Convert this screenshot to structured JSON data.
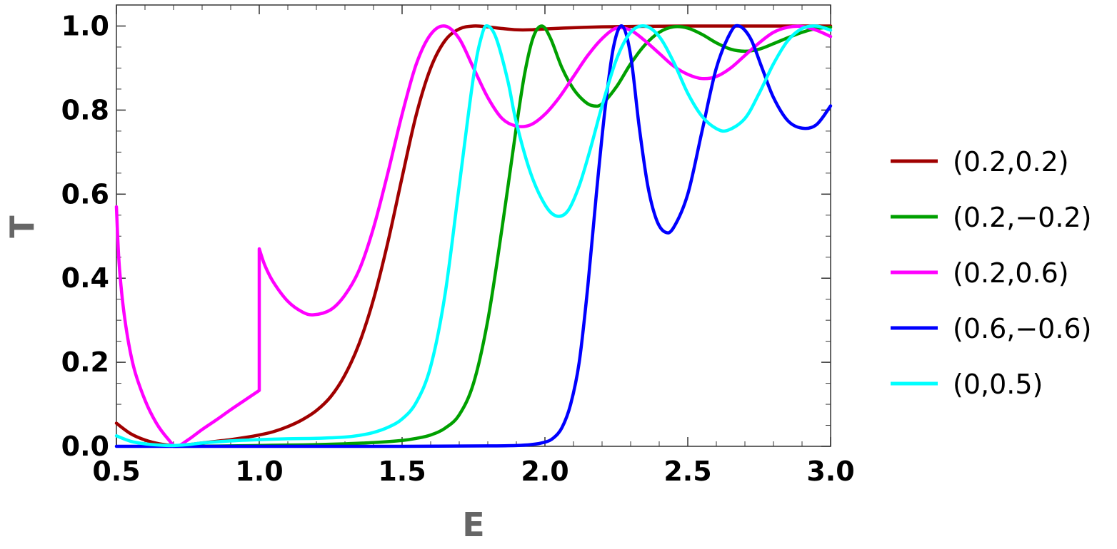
{
  "chart_data": {
    "type": "line",
    "title": "",
    "xlabel": "E",
    "ylabel": "T",
    "xlim": [
      0.5,
      3.0
    ],
    "ylim": [
      0.0,
      1.0
    ],
    "x_ticks": [
      "0.5",
      "1.0",
      "1.5",
      "2.0",
      "2.5",
      "3.0"
    ],
    "y_ticks": [
      "0.0",
      "0.2",
      "0.4",
      "0.6",
      "0.8",
      "1.0"
    ],
    "grid": false,
    "legend_position": "right",
    "series": [
      {
        "name": "(0.2,0.2)",
        "color": "#a00000",
        "points": [
          [
            0.5,
            0.055
          ],
          [
            0.55,
            0.03
          ],
          [
            0.6,
            0.015
          ],
          [
            0.65,
            0.006
          ],
          [
            0.7,
            0.002
          ],
          [
            0.75,
            0.004
          ],
          [
            0.8,
            0.008
          ],
          [
            0.85,
            0.012
          ],
          [
            0.9,
            0.016
          ],
          [
            0.95,
            0.021
          ],
          [
            1.0,
            0.027
          ],
          [
            1.05,
            0.035
          ],
          [
            1.1,
            0.047
          ],
          [
            1.15,
            0.063
          ],
          [
            1.2,
            0.085
          ],
          [
            1.25,
            0.118
          ],
          [
            1.3,
            0.17
          ],
          [
            1.35,
            0.245
          ],
          [
            1.4,
            0.35
          ],
          [
            1.45,
            0.485
          ],
          [
            1.5,
            0.64
          ],
          [
            1.55,
            0.79
          ],
          [
            1.6,
            0.9
          ],
          [
            1.65,
            0.965
          ],
          [
            1.7,
            0.993
          ],
          [
            1.75,
            1.0
          ],
          [
            1.8,
            0.998
          ],
          [
            1.85,
            0.994
          ],
          [
            1.9,
            0.991
          ],
          [
            1.95,
            0.991
          ],
          [
            2.0,
            0.993
          ],
          [
            2.1,
            0.996
          ],
          [
            2.2,
            0.998
          ],
          [
            2.3,
            0.999
          ],
          [
            2.5,
            1.0
          ],
          [
            2.75,
            1.0
          ],
          [
            3.0,
            1.0
          ]
        ]
      },
      {
        "name": "(0.2,−0.2)",
        "color": "#00a000",
        "points": [
          [
            0.7,
            0.0
          ],
          [
            0.8,
            0.0005
          ],
          [
            0.9,
            0.001
          ],
          [
            1.0,
            0.002
          ],
          [
            1.1,
            0.003
          ],
          [
            1.2,
            0.004
          ],
          [
            1.3,
            0.006
          ],
          [
            1.4,
            0.009
          ],
          [
            1.5,
            0.014
          ],
          [
            1.55,
            0.019
          ],
          [
            1.6,
            0.027
          ],
          [
            1.65,
            0.043
          ],
          [
            1.7,
            0.075
          ],
          [
            1.75,
            0.15
          ],
          [
            1.8,
            0.3
          ],
          [
            1.85,
            0.52
          ],
          [
            1.9,
            0.76
          ],
          [
            1.93,
            0.89
          ],
          [
            1.96,
            0.975
          ],
          [
            1.99,
            1.0
          ],
          [
            2.02,
            0.97
          ],
          [
            2.06,
            0.9
          ],
          [
            2.1,
            0.85
          ],
          [
            2.14,
            0.82
          ],
          [
            2.17,
            0.81
          ],
          [
            2.2,
            0.815
          ],
          [
            2.25,
            0.855
          ],
          [
            2.3,
            0.91
          ],
          [
            2.35,
            0.955
          ],
          [
            2.4,
            0.985
          ],
          [
            2.45,
            0.998
          ],
          [
            2.5,
            0.995
          ],
          [
            2.55,
            0.98
          ],
          [
            2.6,
            0.96
          ],
          [
            2.65,
            0.945
          ],
          [
            2.7,
            0.94
          ],
          [
            2.75,
            0.945
          ],
          [
            2.8,
            0.958
          ],
          [
            2.85,
            0.972
          ],
          [
            2.9,
            0.985
          ],
          [
            2.95,
            0.994
          ],
          [
            3.0,
            0.997
          ]
        ]
      },
      {
        "name": "(0.2,0.6)",
        "color": "#ff00ff",
        "points": [
          [
            0.5,
            0.57
          ],
          [
            0.51,
            0.43
          ],
          [
            0.53,
            0.3
          ],
          [
            0.56,
            0.19
          ],
          [
            0.6,
            0.11
          ],
          [
            0.64,
            0.055
          ],
          [
            0.68,
            0.018
          ],
          [
            0.71,
            0.0
          ],
          [
            0.75,
            0.015
          ],
          [
            0.8,
            0.04
          ],
          [
            0.85,
            0.063
          ],
          [
            0.9,
            0.087
          ],
          [
            0.95,
            0.11
          ],
          [
            1.0,
            0.133
          ],
          [
            1.0,
            0.47
          ],
          [
            1.02,
            0.43
          ],
          [
            1.05,
            0.39
          ],
          [
            1.1,
            0.345
          ],
          [
            1.15,
            0.32
          ],
          [
            1.19,
            0.313
          ],
          [
            1.25,
            0.325
          ],
          [
            1.3,
            0.36
          ],
          [
            1.35,
            0.42
          ],
          [
            1.4,
            0.52
          ],
          [
            1.45,
            0.65
          ],
          [
            1.5,
            0.79
          ],
          [
            1.55,
            0.91
          ],
          [
            1.6,
            0.98
          ],
          [
            1.65,
            1.0
          ],
          [
            1.7,
            0.97
          ],
          [
            1.75,
            0.9
          ],
          [
            1.8,
            0.83
          ],
          [
            1.85,
            0.78
          ],
          [
            1.9,
            0.762
          ],
          [
            1.95,
            0.765
          ],
          [
            2.0,
            0.79
          ],
          [
            2.05,
            0.83
          ],
          [
            2.1,
            0.88
          ],
          [
            2.15,
            0.93
          ],
          [
            2.2,
            0.97
          ],
          [
            2.25,
            0.995
          ],
          [
            2.3,
            0.99
          ],
          [
            2.35,
            0.965
          ],
          [
            2.4,
            0.935
          ],
          [
            2.45,
            0.905
          ],
          [
            2.5,
            0.885
          ],
          [
            2.55,
            0.875
          ],
          [
            2.6,
            0.88
          ],
          [
            2.65,
            0.9
          ],
          [
            2.7,
            0.93
          ],
          [
            2.75,
            0.96
          ],
          [
            2.8,
            0.985
          ],
          [
            2.85,
            0.997
          ],
          [
            2.9,
            0.999
          ],
          [
            2.95,
            0.99
          ],
          [
            3.0,
            0.975
          ]
        ]
      },
      {
        "name": "(0.6,−0.6)",
        "color": "#0000ff",
        "points": [
          [
            0.5,
            0.0
          ],
          [
            1.0,
            0.0
          ],
          [
            1.5,
            0.0
          ],
          [
            1.8,
            0.001
          ],
          [
            1.9,
            0.002
          ],
          [
            1.95,
            0.004
          ],
          [
            2.0,
            0.01
          ],
          [
            2.03,
            0.02
          ],
          [
            2.06,
            0.045
          ],
          [
            2.09,
            0.1
          ],
          [
            2.12,
            0.2
          ],
          [
            2.15,
            0.38
          ],
          [
            2.18,
            0.6
          ],
          [
            2.21,
            0.8
          ],
          [
            2.24,
            0.95
          ],
          [
            2.27,
            1.0
          ],
          [
            2.3,
            0.93
          ],
          [
            2.33,
            0.76
          ],
          [
            2.36,
            0.62
          ],
          [
            2.39,
            0.54
          ],
          [
            2.42,
            0.51
          ],
          [
            2.45,
            0.52
          ],
          [
            2.5,
            0.6
          ],
          [
            2.55,
            0.75
          ],
          [
            2.6,
            0.9
          ],
          [
            2.65,
            0.985
          ],
          [
            2.68,
            1.0
          ],
          [
            2.72,
            0.97
          ],
          [
            2.76,
            0.9
          ],
          [
            2.8,
            0.83
          ],
          [
            2.85,
            0.775
          ],
          [
            2.9,
            0.757
          ],
          [
            2.95,
            0.765
          ],
          [
            3.0,
            0.81
          ]
        ]
      },
      {
        "name": "(0,0.5)",
        "color": "#00ffff",
        "points": [
          [
            0.5,
            0.025
          ],
          [
            0.55,
            0.012
          ],
          [
            0.6,
            0.006
          ],
          [
            0.65,
            0.003
          ],
          [
            0.7,
            0.002
          ],
          [
            0.75,
            0.004
          ],
          [
            0.8,
            0.008
          ],
          [
            0.9,
            0.013
          ],
          [
            1.0,
            0.016
          ],
          [
            1.1,
            0.018
          ],
          [
            1.2,
            0.019
          ],
          [
            1.3,
            0.022
          ],
          [
            1.35,
            0.026
          ],
          [
            1.4,
            0.033
          ],
          [
            1.45,
            0.045
          ],
          [
            1.5,
            0.065
          ],
          [
            1.55,
            0.105
          ],
          [
            1.6,
            0.19
          ],
          [
            1.65,
            0.36
          ],
          [
            1.7,
            0.62
          ],
          [
            1.75,
            0.88
          ],
          [
            1.78,
            0.98
          ],
          [
            1.8,
            1.0
          ],
          [
            1.83,
            0.97
          ],
          [
            1.87,
            0.87
          ],
          [
            1.9,
            0.77
          ],
          [
            1.95,
            0.65
          ],
          [
            2.0,
            0.575
          ],
          [
            2.04,
            0.548
          ],
          [
            2.08,
            0.56
          ],
          [
            2.12,
            0.62
          ],
          [
            2.16,
            0.71
          ],
          [
            2.2,
            0.81
          ],
          [
            2.25,
            0.92
          ],
          [
            2.3,
            0.985
          ],
          [
            2.35,
            1.0
          ],
          [
            2.4,
            0.975
          ],
          [
            2.45,
            0.915
          ],
          [
            2.5,
            0.84
          ],
          [
            2.55,
            0.785
          ],
          [
            2.6,
            0.756
          ],
          [
            2.64,
            0.752
          ],
          [
            2.7,
            0.78
          ],
          [
            2.75,
            0.84
          ],
          [
            2.8,
            0.91
          ],
          [
            2.85,
            0.965
          ],
          [
            2.9,
            0.994
          ],
          [
            2.95,
            1.0
          ],
          [
            3.0,
            0.99
          ]
        ]
      }
    ]
  }
}
